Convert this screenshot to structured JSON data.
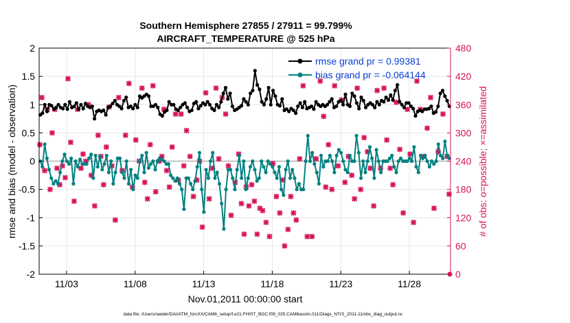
{
  "chart_data": {
    "type": "line",
    "title": "Southern Hemisphere 27855 / 27911 = 99.799%",
    "subtitle": "AIRCRAFT_TEMPERATURE @ 525 hPa",
    "xlabel": "Nov.01,2011 00:00:00 start",
    "ylabel_left": "rmse and bias (model - observation)",
    "ylabel_right": "# of obs: o=possible; ×=assimilated",
    "footnote": "data file: /Users/raeder/DAI/ATM_forcXX/CAM6_setup/f.e21.FHIST_BGC.f09_025.CAM6assim.011/Diags_NTrS_2011-11/obs_diag_output.nc",
    "xlim": [
      1.0,
      31.0
    ],
    "ylim_left": [
      -2,
      2
    ],
    "ylim_right": [
      0,
      480
    ],
    "x_ticks": [
      3,
      8,
      13,
      18,
      23,
      28
    ],
    "x_tick_labels": [
      "11/03",
      "11/08",
      "11/13",
      "11/18",
      "11/23",
      "11/28"
    ],
    "y_left_ticks": [
      -2,
      -1.5,
      -1,
      -0.5,
      0,
      0.5,
      1,
      1.5,
      2
    ],
    "y_left_tick_labels": [
      "-2",
      "-1.5",
      "-1",
      "-0.5",
      "0",
      "0.5",
      "1",
      "1.5",
      "2"
    ],
    "y_right_ticks": [
      0,
      60,
      120,
      180,
      240,
      300,
      360,
      420,
      480
    ],
    "y_right_tick_labels": [
      "0",
      "60",
      "120",
      "180",
      "240",
      "300",
      "360",
      "420",
      "480"
    ],
    "grid": true,
    "legend_location": "top-right",
    "colors": {
      "rmse": "#000000",
      "bias": "#008080",
      "obs": "#d6135a",
      "legend_text": "#0b3fd6",
      "zero_line": "#b0b0b0"
    },
    "series": [
      {
        "name": "rmse grand pr = 0.99381",
        "axis": "left",
        "color": "#000000",
        "values": [
          0.82,
          0.85,
          1.0,
          0.88,
          1.0,
          0.98,
          0.92,
          0.95,
          1.0,
          0.95,
          0.93,
          1.0,
          0.92,
          1.05,
          0.95,
          0.97,
          1.03,
          0.92,
          1.0,
          0.93,
          1.02,
          0.97,
          0.95,
          0.97,
          0.75,
          0.88,
          0.9,
          0.88,
          0.9,
          0.82,
          0.95,
          0.97,
          1.02,
          1.07,
          1.0,
          0.97,
          0.93,
          1.07,
          1.13,
          0.95,
          0.97,
          0.93,
          1.0,
          0.95,
          1.15,
          1.12,
          1.15,
          1.18,
          1.15,
          0.97,
          0.97,
          1.0,
          0.95,
          0.83,
          0.8,
          0.87,
          0.9,
          1.05,
          1.0,
          1.0,
          0.92,
          0.9,
          0.95,
          1.0,
          1.03,
          0.95,
          0.88,
          0.9,
          1.02,
          1.05,
          0.93,
          0.98,
          1.03,
          1.0,
          1.05,
          1.0,
          0.93,
          0.9,
          1.0,
          0.95,
          1.05,
          1.2,
          1.3,
          1.1,
          1.2,
          0.97,
          0.9,
          0.92,
          0.95,
          0.98,
          1.1,
          1.05,
          1.0,
          1.2,
          1.25,
          1.6,
          1.35,
          1.27,
          1.05,
          1.0,
          1.1,
          1.3,
          1.0,
          1.25,
          1.15,
          1.0,
          0.98,
          1.1,
          0.9,
          0.92,
          0.88,
          0.93,
          0.9,
          0.85,
          0.97,
          1.03,
          0.95,
          1.05,
          0.93,
          0.95,
          0.97,
          0.92,
          1.05,
          1.0,
          0.97,
          1.0,
          0.97,
          1.0,
          1.05,
          1.1,
          0.95,
          0.97,
          1.05,
          1.07,
          1.0,
          1.18,
          1.0,
          0.97,
          1.2,
          1.15,
          1.03,
          0.93,
          1.13,
          1.07,
          0.95,
          1.0,
          1.03,
          1.0,
          0.95,
          1.05,
          1.0,
          1.07,
          1.05,
          1.13,
          1.08,
          1.17,
          1.08,
          1.25,
          1.35,
          1.05,
          1.0,
          0.95,
          1.03,
          1.03,
          0.97,
          0.93,
          0.8,
          0.88,
          0.9,
          0.88,
          0.92,
          0.92,
          0.93,
          0.97,
          0.85,
          0.87,
          0.97,
          1.2,
          1.25,
          1.15,
          1.07,
          0.97
        ]
      },
      {
        "name": "bias grand pr = -0.064144",
        "axis": "left",
        "color": "#008080",
        "values": [
          0.0,
          -0.1,
          0.3,
          0.05,
          -0.15,
          -0.3,
          -0.4,
          -0.35,
          -0.4,
          -0.2,
          0.0,
          0.12,
          0.0,
          -0.05,
          0.05,
          -0.4,
          0.0,
          -0.1,
          0.03,
          -0.05,
          -0.05,
          -0.05,
          0.05,
          0.12,
          -0.3,
          0.1,
          -0.1,
          0.08,
          -0.15,
          -0.05,
          0.1,
          -0.2,
          0.0,
          -0.4,
          -0.2,
          0.05,
          0.05,
          -0.2,
          -0.3,
          0.0,
          -0.4,
          -0.15,
          -0.5,
          -0.25,
          -0.3,
          0.0,
          0.1,
          -0.2,
          0.15,
          -0.12,
          -0.05,
          0.0,
          -0.15,
          0.0,
          0.05,
          0.02,
          0.0,
          -0.05,
          -0.05,
          -0.25,
          -0.3,
          -0.35,
          -0.3,
          -0.4,
          -0.5,
          -0.85,
          -0.3,
          -0.3,
          -0.4,
          -0.5,
          -0.35,
          -0.1,
          0.15,
          -0.5,
          -0.9,
          -0.15,
          -0.3,
          0.0,
          0.15,
          -0.3,
          -0.2,
          -0.4,
          -0.75,
          -1.2,
          -0.5,
          -0.15,
          -0.15,
          -0.3,
          -0.5,
          -0.15,
          0.1,
          -0.3,
          0.0,
          -0.5,
          -0.3,
          -0.1,
          0.0,
          -0.15,
          -0.35,
          -0.3,
          0.0,
          -0.1,
          -0.2,
          0.0,
          -0.05,
          -0.1,
          -0.2,
          -0.3,
          -0.1,
          -0.5,
          -0.6,
          -0.15,
          0.0,
          -0.3,
          -0.15,
          -0.3,
          -0.5,
          -0.4,
          -0.5,
          -0.5,
          0.0,
          0.45,
          0.0,
          0.15,
          -0.05,
          -0.2,
          -0.4,
          0.1,
          -0.1,
          0.0,
          0.0,
          0.1,
          0.0,
          -0.2,
          0.1,
          0.2,
          0.15,
          0.0,
          -0.15,
          -0.2,
          0.1,
          0.0,
          0.0,
          0.45,
          0.15,
          -0.3,
          0.0,
          -0.2,
          0.0,
          0.25,
          0.05,
          -0.3,
          0.2,
          0.0,
          -0.2,
          0.0,
          0.0,
          0.0,
          0.05,
          0.1,
          -0.1,
          -0.2,
          0.0,
          0.05,
          0.0,
          0.0,
          0.0,
          0.05,
          0.0,
          0.25,
          -0.1,
          -0.2,
          0.1,
          0.05,
          0.1,
          0.0,
          -0.1,
          0.0,
          -0.05,
          0.0,
          0.3,
          0.1,
          0.05,
          0.35,
          0.1,
          0.05
        ]
      },
      {
        "name": "# of obs assimilated",
        "axis": "right",
        "color": "#d6135a",
        "points": [
          [
            1.05,
            275
          ],
          [
            1.2,
            375
          ],
          [
            1.4,
            220
          ],
          [
            1.6,
            350
          ],
          [
            1.8,
            180
          ],
          [
            1.95,
            300
          ],
          [
            2.15,
            350
          ],
          [
            2.3,
            225
          ],
          [
            2.5,
            190
          ],
          [
            2.7,
            230
          ],
          [
            2.9,
            205
          ],
          [
            3.1,
            415
          ],
          [
            3.3,
            280
          ],
          [
            3.55,
            155
          ],
          [
            3.8,
            350
          ],
          [
            4.05,
            225
          ],
          [
            4.2,
            255
          ],
          [
            4.4,
            240
          ],
          [
            4.6,
            360
          ],
          [
            4.8,
            210
          ],
          [
            5.05,
            145
          ],
          [
            5.3,
            295
          ],
          [
            5.5,
            250
          ],
          [
            5.7,
            190
          ],
          [
            5.9,
            270
          ],
          [
            6.1,
            355
          ],
          [
            6.3,
            230
          ],
          [
            6.55,
            115
          ],
          [
            6.8,
            375
          ],
          [
            7.05,
            220
          ],
          [
            7.3,
            295
          ],
          [
            7.55,
            405
          ],
          [
            7.8,
            185
          ],
          [
            8.05,
            285
          ],
          [
            8.3,
            240
          ],
          [
            8.5,
            395
          ],
          [
            8.7,
            195
          ],
          [
            8.9,
            160
          ],
          [
            9.1,
            275
          ],
          [
            9.3,
            400
          ],
          [
            9.5,
            175
          ],
          [
            9.75,
            240
          ],
          [
            9.95,
            250
          ],
          [
            10.1,
            350
          ],
          [
            10.3,
            220
          ],
          [
            10.5,
            185
          ],
          [
            10.7,
            270
          ],
          [
            10.95,
            340
          ],
          [
            11.15,
            200
          ],
          [
            11.35,
            340
          ],
          [
            11.55,
            230
          ],
          [
            11.75,
            305
          ],
          [
            12.0,
            250
          ],
          [
            12.25,
            165
          ],
          [
            12.5,
            200
          ],
          [
            12.7,
            240
          ],
          [
            12.9,
            100
          ],
          [
            13.15,
            385
          ],
          [
            13.4,
            160
          ],
          [
            13.65,
            225
          ],
          [
            13.9,
            395
          ],
          [
            14.1,
            245
          ],
          [
            14.35,
            375
          ],
          [
            14.6,
            340
          ],
          [
            14.8,
            230
          ],
          [
            15.0,
            125
          ],
          [
            15.3,
            195
          ],
          [
            15.55,
            255
          ],
          [
            15.75,
            150
          ],
          [
            15.95,
            85
          ],
          [
            16.1,
            185
          ],
          [
            16.3,
            145
          ],
          [
            16.5,
            190
          ],
          [
            16.7,
            155
          ],
          [
            16.9,
            85
          ],
          [
            17.1,
            140
          ],
          [
            17.3,
            135
          ],
          [
            17.55,
            110
          ],
          [
            17.8,
            80
          ],
          [
            18.05,
            235
          ],
          [
            18.3,
            165
          ],
          [
            18.55,
            130
          ],
          [
            18.75,
            200
          ],
          [
            18.9,
            60
          ],
          [
            19.15,
            95
          ],
          [
            19.35,
            165
          ],
          [
            19.55,
            130
          ],
          [
            19.75,
            115
          ],
          [
            20.0,
            245
          ],
          [
            20.25,
            400
          ],
          [
            20.55,
            80
          ],
          [
            20.9,
            80
          ],
          [
            21.2,
            245
          ],
          [
            21.5,
            410
          ],
          [
            21.75,
            335
          ],
          [
            21.9,
            185
          ],
          [
            22.1,
            275
          ],
          [
            22.35,
            180
          ],
          [
            22.55,
            400
          ],
          [
            22.8,
            230
          ],
          [
            23.05,
            370
          ],
          [
            23.3,
            195
          ],
          [
            23.55,
            250
          ],
          [
            23.8,
            210
          ],
          [
            24.0,
            160
          ],
          [
            24.2,
            395
          ],
          [
            24.45,
            180
          ],
          [
            24.7,
            290
          ],
          [
            24.95,
            260
          ],
          [
            25.15,
            225
          ],
          [
            25.4,
            145
          ],
          [
            25.65,
            390
          ],
          [
            25.9,
            225
          ],
          [
            26.15,
            395
          ],
          [
            26.35,
            285
          ],
          [
            26.6,
            225
          ],
          [
            26.8,
            190
          ],
          [
            27.05,
            365
          ],
          [
            27.3,
            265
          ],
          [
            27.55,
            130
          ],
          [
            27.85,
            350
          ],
          [
            28.05,
            255
          ],
          [
            28.3,
            110
          ],
          [
            28.55,
            410
          ],
          [
            28.8,
            350
          ],
          [
            29.05,
            250
          ],
          [
            29.3,
            310
          ],
          [
            29.55,
            375
          ],
          [
            29.8,
            140
          ],
          [
            30.1,
            260
          ],
          [
            30.45,
            340
          ],
          [
            30.75,
            250
          ],
          [
            30.9,
            170
          ]
        ]
      }
    ]
  }
}
